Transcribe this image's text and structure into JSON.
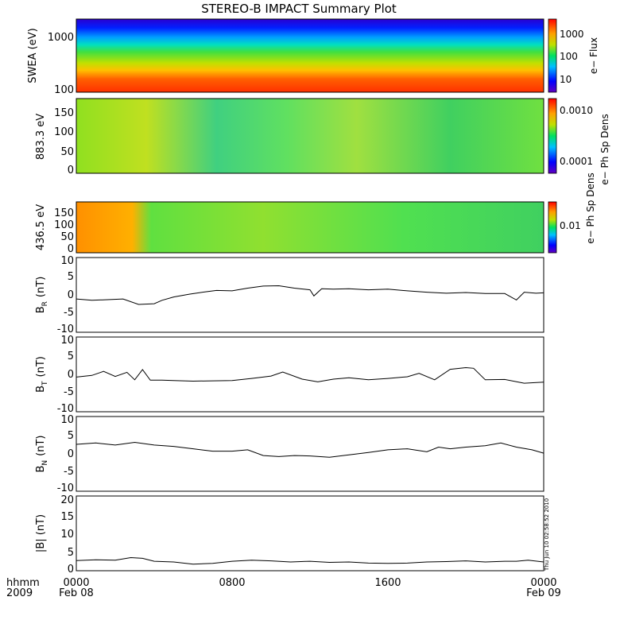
{
  "title": "STEREO-B IMPACT Summary Plot",
  "time_axis": {
    "labels_top": [
      "0000",
      "0800",
      "1600",
      "0000"
    ],
    "labels_bottom": [
      "Feb 08",
      "",
      "",
      "Feb 09"
    ],
    "left_top": "hhmm",
    "left_bottom": "2009"
  },
  "timestamp": "Thu Jun 10 02:58:52 2010",
  "colorbar_ticks": {
    "swea": [
      "1000",
      "100",
      "10"
    ],
    "pa883": [
      "0.0010",
      "0.0001"
    ],
    "pa436": [
      "0.01"
    ]
  },
  "colorbar_labels": {
    "swea": "e− Flux",
    "pa883": "e− Ph Sp Dens",
    "pa436": "e− Ph Sp Dens"
  },
  "chart_data": [
    {
      "type": "heatmap",
      "name": "swea",
      "ylabel": "SWEA (eV)",
      "yscale": "log",
      "ylim": [
        100,
        2000
      ],
      "yticks": [
        "1000",
        "100"
      ],
      "colorbar": "e− Flux",
      "clim": [
        3,
        3000
      ],
      "colorbar_scale": "log"
    },
    {
      "type": "heatmap",
      "name": "pa883",
      "ylabel": "883.3 eV",
      "ylim": [
        0,
        180
      ],
      "yticks": [
        "150",
        "100",
        "50",
        "0"
      ],
      "colorbar": "e− Ph Sp Dens",
      "clim": [
        4e-05,
        0.0015
      ],
      "colorbar_scale": "log"
    },
    {
      "type": "heatmap",
      "name": "pa436",
      "ylabel": "436.5 eV",
      "ylim": [
        0,
        180
      ],
      "yticks": [
        "150",
        "100",
        "50",
        "0"
      ],
      "colorbar": "e− Ph Sp Dens",
      "clim": [
        0.002,
        0.04
      ],
      "colorbar_scale": "log"
    },
    {
      "type": "line",
      "name": "br",
      "ylabel_main": "B",
      "ylabel_sub": "R",
      "ylabel_unit": "(nT)",
      "ylim": [
        -11,
        11
      ],
      "yticks": [
        "10",
        "5",
        "0",
        "-5",
        "-10"
      ],
      "x_hours": [
        0,
        0.8,
        1.6,
        2.4,
        3.2,
        4,
        4.4,
        5.0,
        5.8,
        6.6,
        7.2,
        8,
        8.8,
        9.6,
        10.4,
        11.2,
        12,
        12.2,
        12.6,
        13.2,
        14,
        15,
        16,
        17,
        18,
        19,
        20,
        21,
        22,
        22.6,
        23.0,
        23.6,
        24
      ],
      "values": [
        -1.2,
        -1.6,
        -1.4,
        -1.2,
        -2.8,
        -2.6,
        -1.6,
        -0.6,
        0.2,
        0.9,
        1.3,
        1.2,
        2.0,
        2.6,
        2.7,
        2.0,
        1.5,
        -0.3,
        1.8,
        1.7,
        1.8,
        1.5,
        1.7,
        1.2,
        0.8,
        0.5,
        0.7,
        0.4,
        0.4,
        -1.5,
        0.8,
        0.5,
        0.6
      ]
    },
    {
      "type": "line",
      "name": "bt",
      "ylabel_main": "B",
      "ylabel_sub": "T",
      "ylabel_unit": "(nT)",
      "ylim": [
        -11,
        11
      ],
      "yticks": [
        "10",
        "5",
        "0",
        "-5",
        "-10"
      ],
      "x_hours": [
        0,
        0.8,
        1.4,
        2.0,
        2.6,
        3.0,
        3.4,
        3.8,
        4.4,
        5.0,
        6,
        7,
        8,
        9,
        10,
        10.6,
        11.6,
        12.4,
        13.2,
        14,
        15,
        16,
        17,
        17.6,
        18.4,
        19.2,
        20.0,
        20.4,
        21,
        22,
        23,
        24
      ],
      "values": [
        -0.8,
        -0.3,
        0.9,
        -0.6,
        0.6,
        -1.6,
        1.4,
        -1.7,
        -1.7,
        -1.8,
        -2.0,
        -1.9,
        -1.8,
        -1.2,
        -0.5,
        0.7,
        -1.4,
        -2.2,
        -1.4,
        -1.0,
        -1.6,
        -1.2,
        -0.7,
        0.3,
        -1.6,
        1.5,
        2.0,
        1.8,
        -1.6,
        -1.5,
        -2.6,
        -2.3
      ]
    },
    {
      "type": "line",
      "name": "bn",
      "ylabel_main": "B",
      "ylabel_sub": "N",
      "ylabel_unit": "(nT)",
      "ylim": [
        -11,
        11
      ],
      "yticks": [
        "10",
        "5",
        "0",
        "-5",
        "-10"
      ],
      "x_hours": [
        0,
        1,
        2,
        3,
        4,
        5,
        6,
        7,
        8,
        8.8,
        9.6,
        10.4,
        11.2,
        12,
        13,
        14,
        15,
        16,
        17,
        18,
        18.6,
        19.2,
        20,
        21,
        21.8,
        22.6,
        23.4,
        24
      ],
      "values": [
        2.8,
        3.2,
        2.6,
        3.4,
        2.6,
        2.2,
        1.5,
        0.8,
        0.8,
        1.2,
        -0.5,
        -0.8,
        -0.5,
        -0.6,
        -1.0,
        -0.3,
        0.4,
        1.2,
        1.5,
        0.6,
        2.0,
        1.5,
        2.0,
        2.4,
        3.2,
        2.0,
        1.2,
        0.2
      ]
    },
    {
      "type": "line",
      "name": "bmag",
      "ylabel": "|B| (nT)",
      "ylim": [
        0,
        20.5
      ],
      "yticks": [
        "20",
        "15",
        "10",
        "5",
        "0"
      ],
      "x_hours": [
        0,
        1,
        2,
        2.8,
        3.4,
        4,
        5,
        6,
        7,
        8,
        9,
        10,
        11,
        12,
        13,
        14,
        15,
        16,
        17,
        18,
        19,
        20,
        21,
        22,
        22.6,
        23.2,
        24
      ],
      "values": [
        2.8,
        3.0,
        2.9,
        3.6,
        3.4,
        2.6,
        2.4,
        1.8,
        2.0,
        2.6,
        2.9,
        2.7,
        2.4,
        2.6,
        2.3,
        2.4,
        2.1,
        2.0,
        2.1,
        2.4,
        2.5,
        2.7,
        2.4,
        2.6,
        2.6,
        2.9,
        2.4
      ]
    }
  ]
}
